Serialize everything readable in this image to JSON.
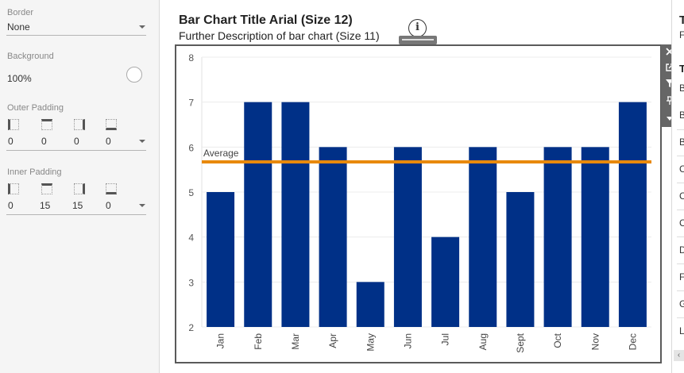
{
  "format_pane": {
    "border": {
      "label": "Border",
      "value": "None"
    },
    "background": {
      "label": "Background",
      "value": "100%"
    },
    "outer_padding": {
      "label": "Outer Padding",
      "values": [
        "0",
        "0",
        "0",
        "0"
      ]
    },
    "inner_padding": {
      "label": "Inner Padding",
      "values": [
        "0",
        "15",
        "15",
        "0"
      ]
    }
  },
  "dashboard": {
    "title": "Bar Chart Title Arial (Size 12)",
    "subtitle": "Further Description of bar chart (Size 11)",
    "info_icon": "info-icon",
    "toolbar_icons": [
      "close-icon",
      "open-in-new-icon",
      "filter-icon",
      "pin-icon",
      "more-options-icon"
    ]
  },
  "chart_data": {
    "type": "bar",
    "categories": [
      "Jan",
      "Feb",
      "Mar",
      "Apr",
      "May",
      "Jun",
      "Jul",
      "Aug",
      "Sept",
      "Oct",
      "Nov",
      "Dec"
    ],
    "values": [
      5,
      7,
      7,
      6,
      3,
      6,
      4,
      6,
      5,
      6,
      6,
      7
    ],
    "ylim": [
      2,
      8
    ],
    "yticks": [
      "8",
      "7",
      "6",
      "5",
      "4",
      "3",
      "2"
    ],
    "reference_line": {
      "label": "Average",
      "value": 5.67,
      "color": "#e8890c"
    },
    "bar_color": "#003087",
    "grid": true
  },
  "right_panel": {
    "header_top": "T",
    "subheader_top": "F",
    "header": "T",
    "items": [
      "B",
      "B",
      "B",
      "C",
      "C",
      "C",
      "D",
      "F",
      "G",
      "L"
    ],
    "scroll_icon": "chevron-left-icon"
  }
}
